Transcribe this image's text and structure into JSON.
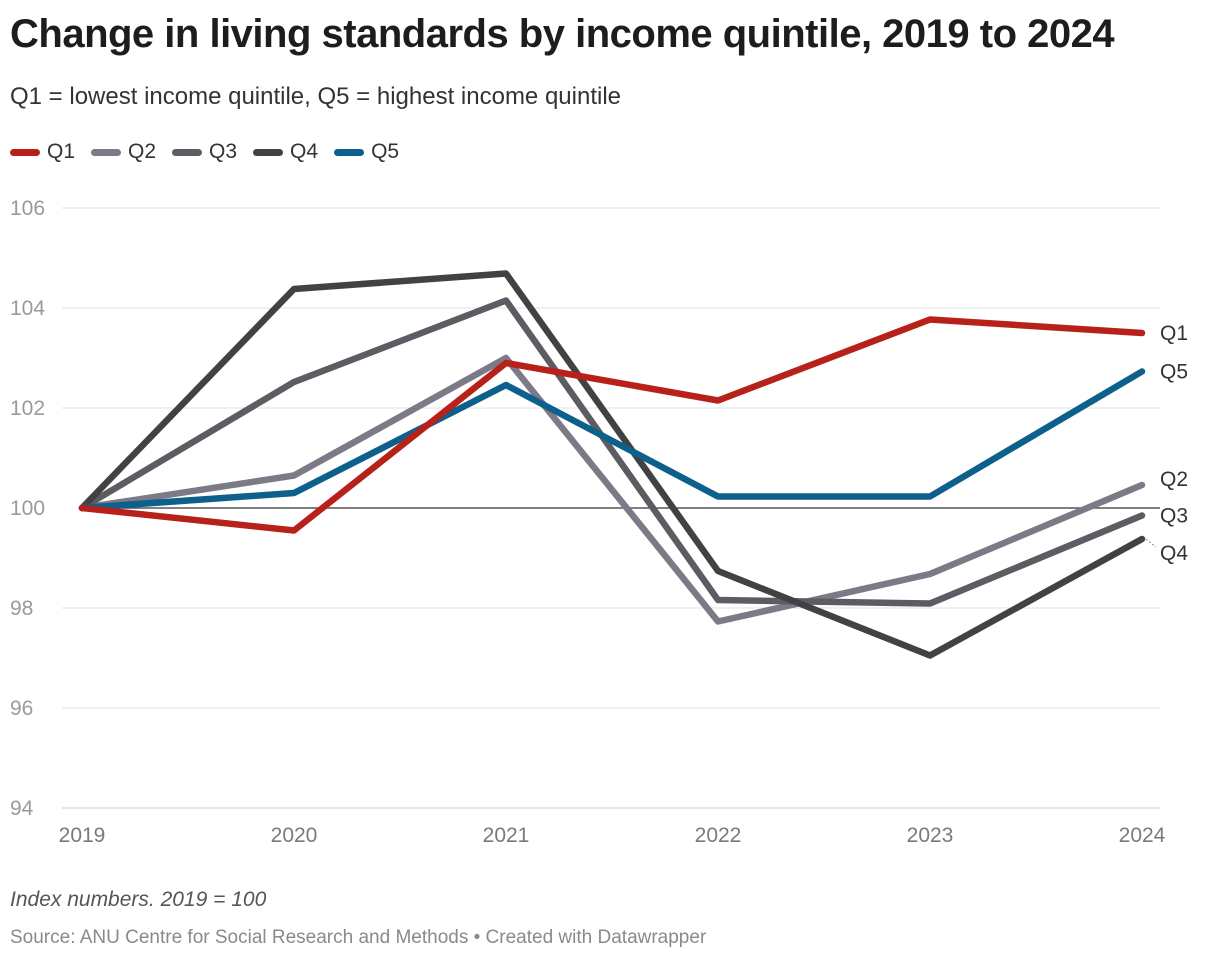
{
  "title": "Change in living standards by income quintile, 2019 to 2024",
  "subtitle": "Q1 = lowest income quintile, Q5 = highest income quintile",
  "footer": {
    "note": "Index numbers. 2019 = 100",
    "source": "Source: ANU Centre for Social Research and Methods",
    "credit": "• Created with Datawrapper"
  },
  "chart_data": {
    "type": "line",
    "x": [
      "2019",
      "2020",
      "2021",
      "2022",
      "2023",
      "2024"
    ],
    "ylim": [
      94,
      106
    ],
    "yticks": [
      94,
      96,
      98,
      100,
      102,
      104,
      106
    ],
    "baseline": 100,
    "grid": true,
    "legend_placement": "top-left",
    "series": [
      {
        "name": "Q1",
        "color": "#b8211a",
        "values": [
          100,
          99.55,
          102.9,
          102.15,
          103.77,
          103.5
        ]
      },
      {
        "name": "Q2",
        "color": "#7d7a87",
        "values": [
          100,
          100.65,
          103.0,
          97.73,
          98.68,
          100.46
        ]
      },
      {
        "name": "Q3",
        "color": "#5e5c63",
        "values": [
          100,
          102.52,
          104.15,
          98.16,
          98.09,
          99.85
        ]
      },
      {
        "name": "Q4",
        "color": "#424242",
        "values": [
          100,
          104.38,
          104.69,
          98.74,
          97.05,
          99.38
        ]
      },
      {
        "name": "Q5",
        "color": "#0d5f8c",
        "values": [
          100,
          100.3,
          102.46,
          100.23,
          100.23,
          102.73
        ]
      }
    ]
  }
}
